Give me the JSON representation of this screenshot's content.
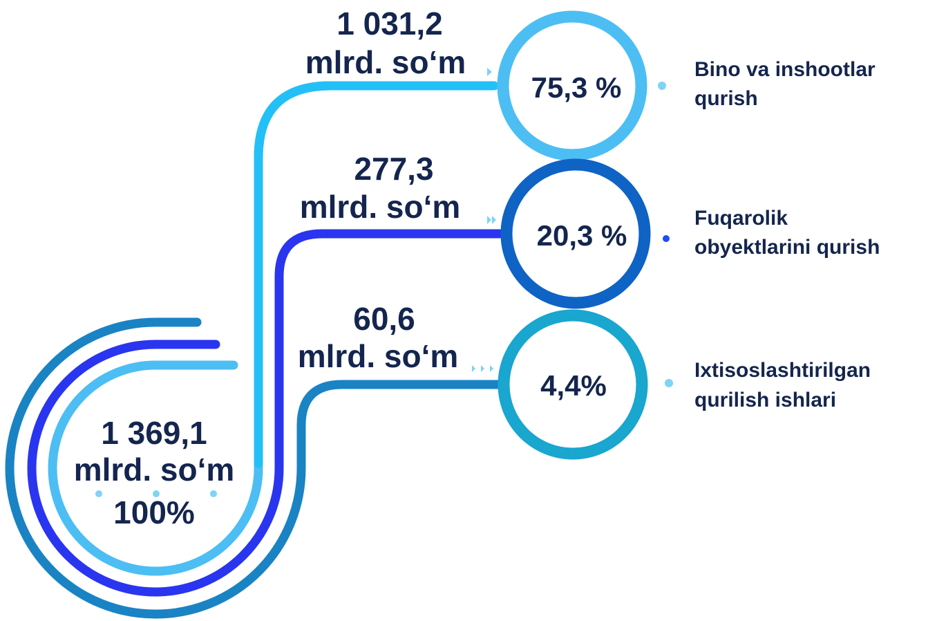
{
  "total": {
    "amount": "1 369,1",
    "unit": "mlrd. so‘m",
    "percent": "100%"
  },
  "branches": [
    {
      "amount": "1 031,2",
      "unit": "mlrd. so‘m",
      "percent": "75,3 %",
      "label_line1": "Bino va inshootlar",
      "label_line2": "qurish",
      "color": "#29b8f5",
      "ring_color": "#4cbef3"
    },
    {
      "amount": "277,3",
      "unit": "mlrd. so‘m",
      "percent": "20,3 %",
      "label_line1": "Fuqarolik",
      "label_line2": "obyektlarini qurish",
      "color": "#2a35f0",
      "ring_color": "#0e63c4"
    },
    {
      "amount": "60,6",
      "unit": "mlrd. so‘m",
      "percent": "4,4%",
      "label_line1": "Ixtisoslashtirilgan",
      "label_line2": "qurilish ishlari",
      "color": "#1a83c4",
      "ring_color": "#19a6cf"
    }
  ],
  "colors": {
    "text": "#14254e",
    "outer_arc": "#1a83c4",
    "middle_arc": "#2a35f0",
    "inner_arc": "#4cbef3",
    "dots": "#7fd3f7"
  }
}
